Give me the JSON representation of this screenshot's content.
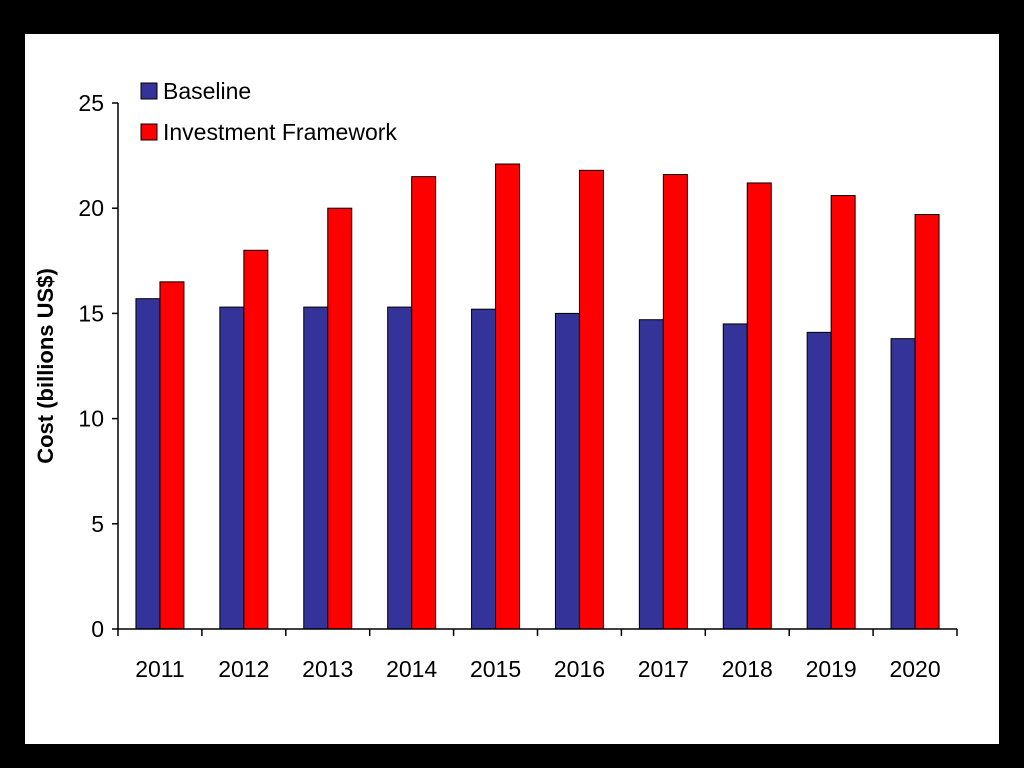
{
  "chart_data": {
    "type": "bar",
    "title": "",
    "xlabel": "",
    "ylabel": "Cost (billions US$)",
    "ylim": [
      0,
      25
    ],
    "yticks": [
      0,
      5,
      10,
      15,
      20,
      25
    ],
    "grid": false,
    "legend_position": "top-left",
    "categories": [
      "2011",
      "2012",
      "2013",
      "2014",
      "2015",
      "2016",
      "2017",
      "2018",
      "2019",
      "2020"
    ],
    "series": [
      {
        "name": "Baseline",
        "color": "#333399",
        "values": [
          15.7,
          15.3,
          15.3,
          15.3,
          15.2,
          15.0,
          14.7,
          14.5,
          14.1,
          13.8
        ]
      },
      {
        "name": "Investment Framework",
        "color": "#ff0000",
        "values": [
          16.5,
          18.0,
          20.0,
          21.5,
          22.1,
          21.8,
          21.6,
          21.2,
          20.6,
          19.7
        ]
      }
    ]
  }
}
